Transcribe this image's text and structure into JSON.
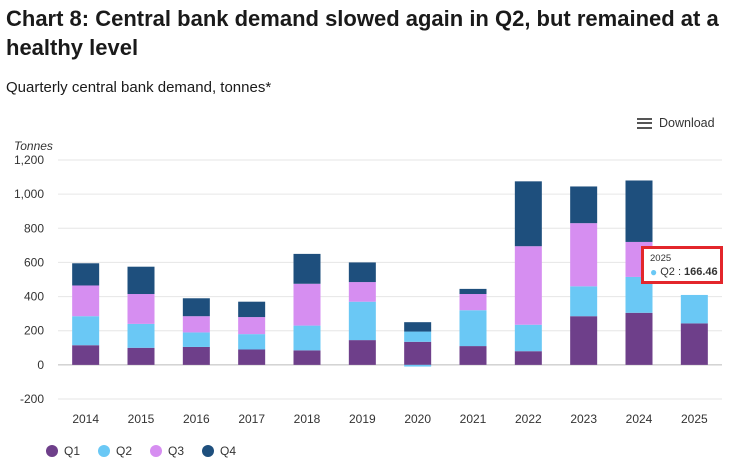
{
  "title": "Chart 8: Central bank demand slowed again in Q2, but remained at a healthy level",
  "subtitle": "Quarterly central bank demand, tonnes*",
  "download_label": "Download",
  "tooltip": {
    "year": "2025",
    "series": "Q2",
    "value": "166.46"
  },
  "colors": {
    "Q1": "#6e3f8a",
    "Q2": "#6ac8f5",
    "Q3": "#d68ef1",
    "Q4": "#1e4f7d"
  },
  "chart_data": {
    "type": "bar",
    "stacked": true,
    "title": "Chart 8: Central bank demand slowed again in Q2, but remained at a healthy level",
    "ylabel": "Tonnes",
    "ylim": [
      -200,
      1200
    ],
    "yticks": [
      -200,
      0,
      200,
      400,
      600,
      800,
      1000,
      1200
    ],
    "ytick_labels": [
      "-200",
      "0",
      "200",
      "400",
      "600",
      "800",
      "1,000",
      "1,200"
    ],
    "categories": [
      "2014",
      "2015",
      "2016",
      "2017",
      "2018",
      "2019",
      "2020",
      "2021",
      "2022",
      "2023",
      "2024",
      "2025"
    ],
    "series": [
      {
        "name": "Q1",
        "values": [
          115,
          100,
          105,
          90,
          85,
          145,
          135,
          110,
          80,
          285,
          305,
          243
        ]
      },
      {
        "name": "Q2",
        "values": [
          170,
          140,
          85,
          90,
          145,
          225,
          60,
          210,
          155,
          175,
          210,
          166.46
        ]
      },
      {
        "name": "Q3",
        "values": [
          180,
          175,
          95,
          100,
          245,
          115,
          0,
          95,
          460,
          370,
          205,
          0
        ]
      },
      {
        "name": "Q4",
        "values": [
          130,
          160,
          105,
          90,
          175,
          115,
          55,
          30,
          380,
          215,
          360,
          0
        ]
      }
    ],
    "negatives": [
      0,
      0,
      0,
      0,
      0,
      0,
      -10,
      0,
      0,
      0,
      0,
      0
    ],
    "legend": [
      "Q1",
      "Q2",
      "Q3",
      "Q4"
    ],
    "legend_position": "bottom-left"
  }
}
